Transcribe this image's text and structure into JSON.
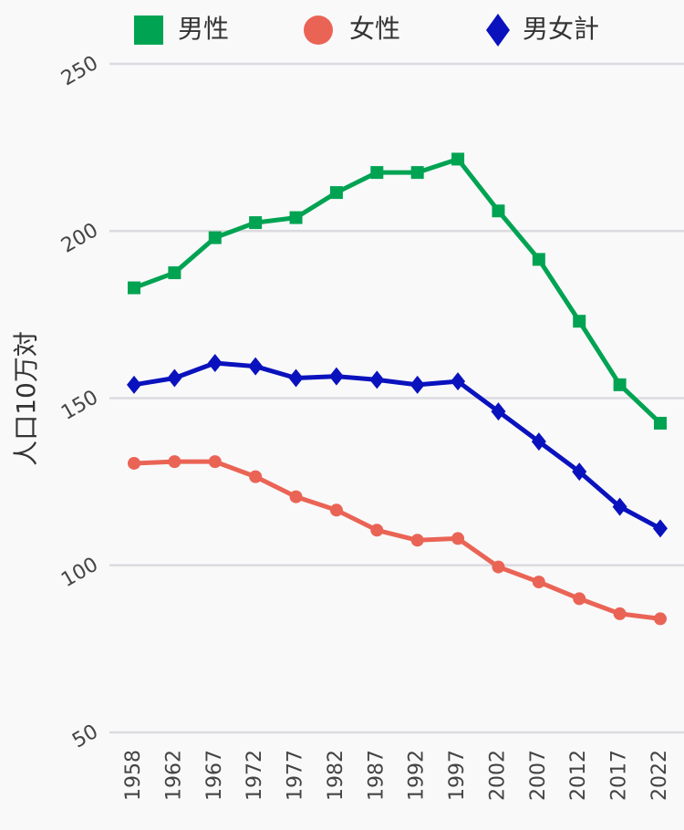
{
  "chart_data": {
    "type": "line",
    "title": "",
    "xlabel": "",
    "ylabel": "人口10万対",
    "ylim": [
      50,
      250
    ],
    "yticks": [
      50,
      100,
      150,
      200,
      250
    ],
    "grid": true,
    "legend_position": "top",
    "categories": [
      "1958",
      "1962",
      "1967",
      "1972",
      "1977",
      "1982",
      "1987",
      "1992",
      "1997",
      "2002",
      "2007",
      "2012",
      "2017",
      "2022"
    ],
    "series": [
      {
        "name": "男性",
        "color": "#00a352",
        "marker": "square",
        "values": [
          183,
          187.5,
          198,
          202.5,
          204,
          211.5,
          217.5,
          217.5,
          221.5,
          206,
          191.5,
          173,
          154,
          142.5
        ]
      },
      {
        "name": "女性",
        "color": "#ea6455",
        "marker": "circle",
        "values": [
          130.5,
          131,
          131,
          126.5,
          120.5,
          116.5,
          110.5,
          107.5,
          108,
          99.5,
          95,
          90,
          85.5,
          84
        ]
      },
      {
        "name": "男女計",
        "color": "#0a12bd",
        "marker": "diamond",
        "values": [
          154,
          156,
          160.5,
          159.5,
          156,
          156.5,
          155.5,
          154,
          155,
          146,
          137,
          128,
          117.5,
          111
        ]
      }
    ]
  }
}
